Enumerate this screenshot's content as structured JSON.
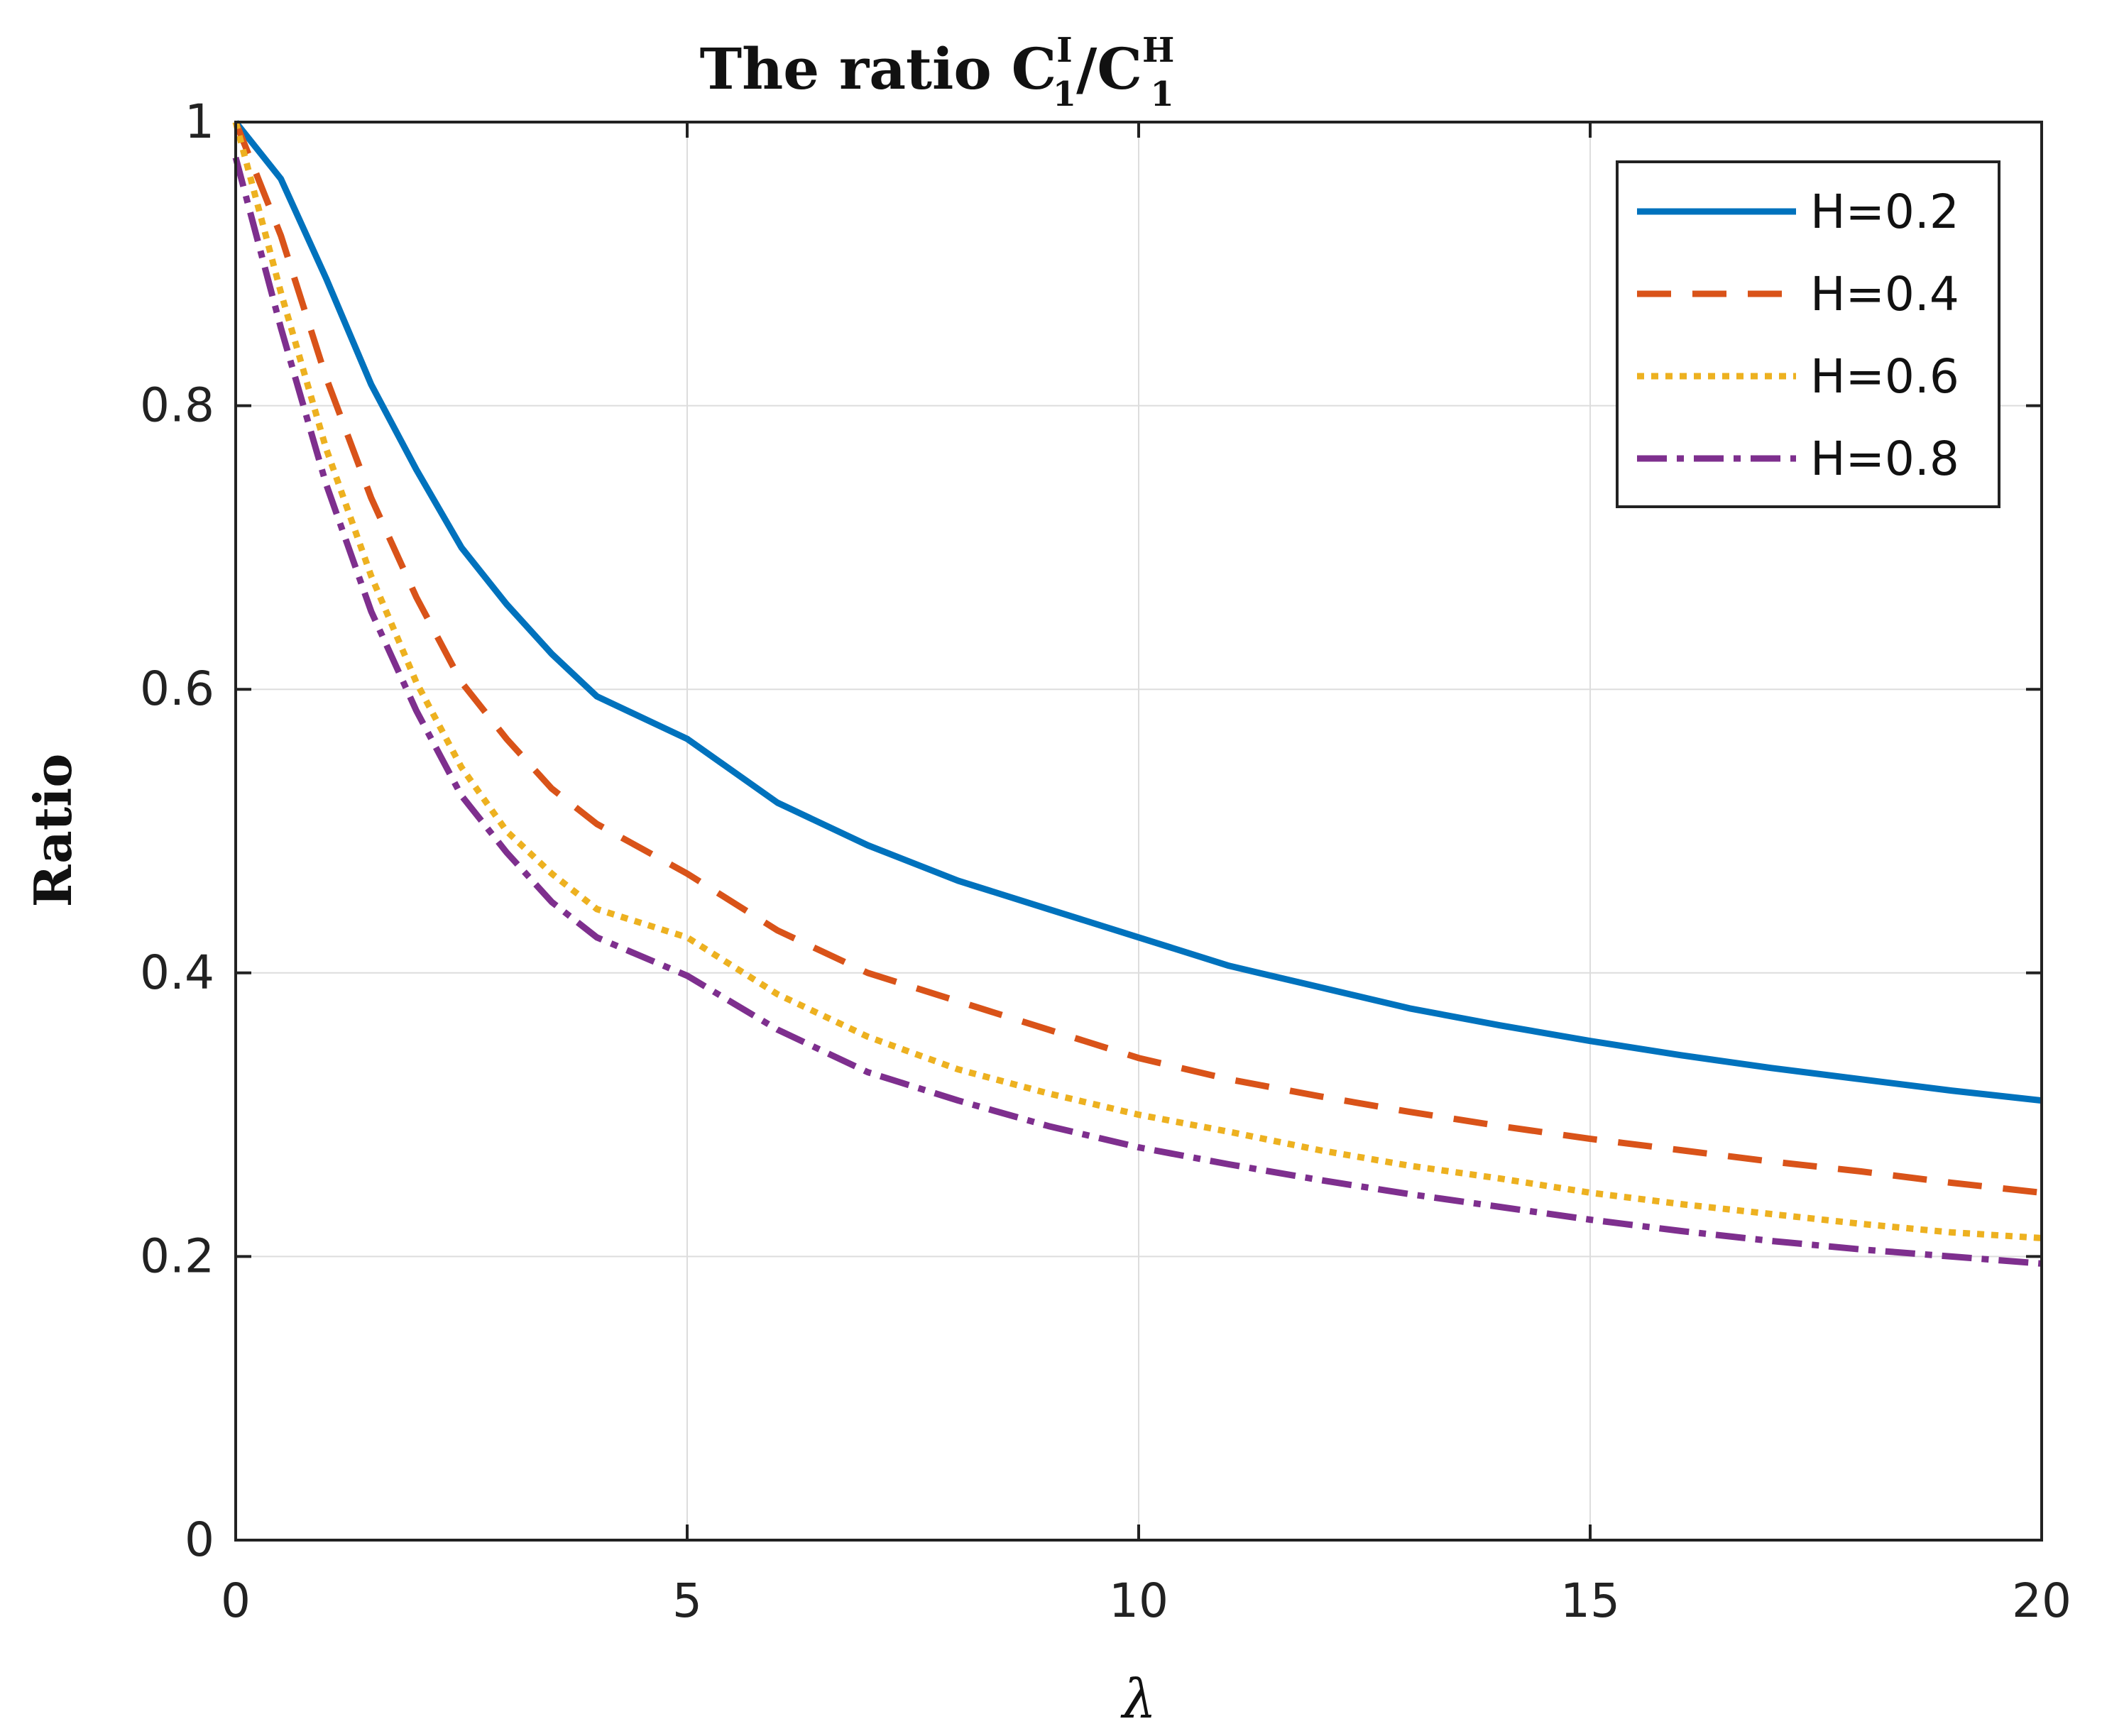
{
  "chart_data": {
    "type": "line",
    "title": {
      "prefix": "The ratio ",
      "num_base": "C",
      "num_sup": "I",
      "num_sub": "1",
      "slash": "/",
      "den_base": "C",
      "den_sup": "H",
      "den_sub": "1"
    },
    "xlabel": "λ",
    "ylabel": "Ratio",
    "xlim": [
      0,
      20
    ],
    "ylim": [
      0,
      1
    ],
    "xticks": [
      0,
      5,
      10,
      15,
      20
    ],
    "xtick_labels": [
      "0",
      "5",
      "10",
      "15",
      "20"
    ],
    "yticks": [
      0,
      0.2,
      0.4,
      0.6,
      0.8,
      1
    ],
    "ytick_labels": [
      "0",
      "0.2",
      "0.4",
      "0.6",
      "0.8",
      "1"
    ],
    "grid": true,
    "legend_position": "top-right",
    "x": [
      0,
      0.5,
      1,
      1.5,
      2,
      2.5,
      3,
      3.5,
      4,
      5,
      6,
      7,
      8,
      9,
      10,
      11,
      12,
      13,
      14,
      15,
      16,
      17,
      18,
      19,
      20
    ],
    "series": [
      {
        "name": "H=0.2",
        "color": "#0072BD",
        "style": "solid",
        "values": [
          1.0,
          0.96,
          0.89,
          0.815,
          0.755,
          0.7,
          0.66,
          0.625,
          0.595,
          0.565,
          0.52,
          0.49,
          0.465,
          0.445,
          0.425,
          0.405,
          0.39,
          0.375,
          0.363,
          0.352,
          0.342,
          0.333,
          0.325,
          0.317,
          0.31
        ]
      },
      {
        "name": "H=0.4",
        "color": "#D95319",
        "style": "dashed",
        "values": [
          1.0,
          0.92,
          0.82,
          0.735,
          0.665,
          0.605,
          0.565,
          0.53,
          0.505,
          0.47,
          0.43,
          0.4,
          0.38,
          0.36,
          0.34,
          0.325,
          0.313,
          0.302,
          0.292,
          0.283,
          0.275,
          0.267,
          0.26,
          0.252,
          0.245
        ]
      },
      {
        "name": "H=0.6",
        "color": "#EDB120",
        "style": "dotted",
        "values": [
          1.0,
          0.88,
          0.77,
          0.68,
          0.605,
          0.545,
          0.5,
          0.47,
          0.445,
          0.425,
          0.385,
          0.355,
          0.332,
          0.315,
          0.3,
          0.288,
          0.275,
          0.264,
          0.255,
          0.245,
          0.237,
          0.23,
          0.223,
          0.217,
          0.213
        ]
      },
      {
        "name": "H=0.8",
        "color": "#7E2F8E",
        "style": "dashdot",
        "values": [
          0.975,
          0.855,
          0.745,
          0.655,
          0.585,
          0.525,
          0.485,
          0.45,
          0.425,
          0.398,
          0.36,
          0.33,
          0.31,
          0.292,
          0.277,
          0.265,
          0.254,
          0.244,
          0.235,
          0.226,
          0.218,
          0.211,
          0.205,
          0.2,
          0.195
        ]
      }
    ]
  }
}
